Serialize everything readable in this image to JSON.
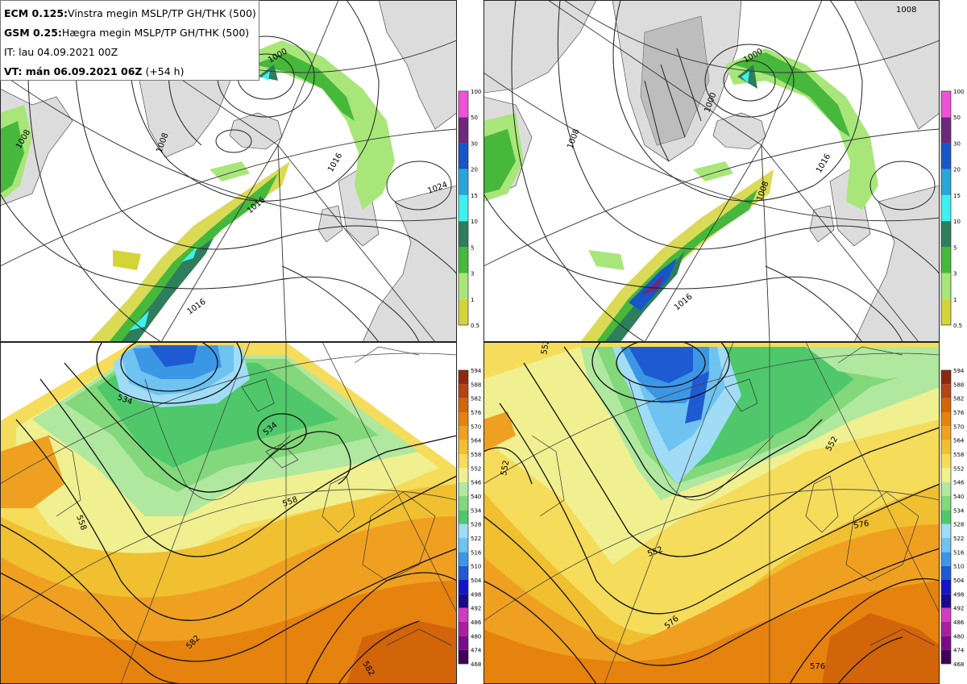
{
  "header": {
    "line1_model": "ECM 0.125:",
    "line1_desc": "Vinstra megin MSLP/TP GH/THK (500)",
    "line2_model": "GSM 0.25:",
    "line2_desc": "Hægra megin MSLP/TP GH/THK (500)",
    "line3": "IT: lau 04.09.2021 00Z",
    "line4_bold": "VT: mán 06.09.2021 06Z",
    "line4_rest": "(+54 h)"
  },
  "precip_colorbar": {
    "levels": [
      "0.5",
      "1",
      "3",
      "5",
      "10",
      "15",
      "20",
      "30",
      "50",
      "100"
    ],
    "colors": [
      "#d4d43a",
      "#a8e67a",
      "#46b83c",
      "#2e7d5c",
      "#3ef0f0",
      "#28a6d8",
      "#1656c8",
      "#6e2a7a",
      "#ee52d8"
    ]
  },
  "thickness_colorbar": {
    "levels": [
      "468",
      "474",
      "480",
      "486",
      "492",
      "498",
      "504",
      "510",
      "516",
      "522",
      "528",
      "534",
      "540",
      "546",
      "552",
      "558",
      "564",
      "570",
      "576",
      "582",
      "588",
      "594"
    ],
    "colors": [
      "#40005a",
      "#7a0a86",
      "#a8209e",
      "#d23cc2",
      "#1a0a8c",
      "#1414c8",
      "#1e5ad2",
      "#3c96e6",
      "#6ec3f0",
      "#a0dcf5",
      "#4ec86a",
      "#82d87a",
      "#b0e8a0",
      "#f0f090",
      "#f5dc5a",
      "#f0c030",
      "#f0a020",
      "#e6820e",
      "#d2640a",
      "#b44414",
      "#8c2810"
    ]
  },
  "panels": {
    "tl": {
      "labels": [
        {
          "text": "1008"
        },
        {
          "text": "1008"
        },
        {
          "text": "1000"
        },
        {
          "text": "1016"
        },
        {
          "text": "1016"
        },
        {
          "text": "1016"
        },
        {
          "text": "1024"
        }
      ]
    },
    "tr": {
      "labels": [
        {
          "text": "1008"
        },
        {
          "text": "1008"
        },
        {
          "text": "1000"
        },
        {
          "text": "1000"
        },
        {
          "text": "1008"
        },
        {
          "text": "1016"
        },
        {
          "text": "1016"
        }
      ]
    },
    "bl": {
      "labels": [
        {
          "text": "534"
        },
        {
          "text": "534"
        },
        {
          "text": "558"
        },
        {
          "text": "558"
        },
        {
          "text": "582"
        },
        {
          "text": "582"
        }
      ]
    },
    "br": {
      "labels": [
        {
          "text": "552"
        },
        {
          "text": "552"
        },
        {
          "text": "552"
        },
        {
          "text": "552"
        },
        {
          "text": "576"
        },
        {
          "text": "576"
        },
        {
          "text": "576"
        }
      ]
    }
  }
}
